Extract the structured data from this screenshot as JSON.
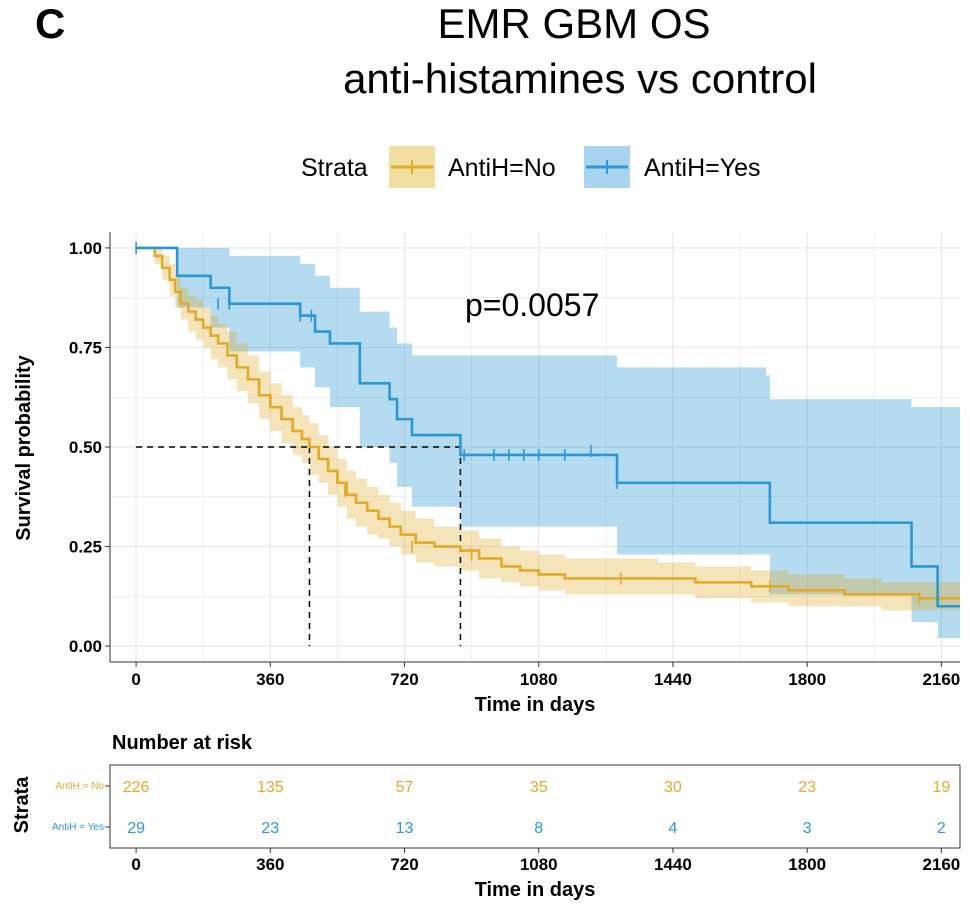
{
  "panel_letter": "C",
  "title_line1": "EMR GBM OS",
  "title_line2": "anti-histamines vs control",
  "colors": {
    "no": "#E2AA2A",
    "yes": "#2C97D6",
    "no_band": "#F2DEA0",
    "yes_band": "#A9D3EE",
    "grid": "#EBEBEB"
  },
  "legend": {
    "title": "Strata"
  },
  "chart_data": {
    "type": "line",
    "title": "EMR GBM OS anti-histamines vs control",
    "xlabel": "Time in days",
    "ylabel": "Survival probability",
    "xlim": [
      -70,
      2210
    ],
    "ylim": [
      -0.04,
      1.04
    ],
    "x_ticks": [
      0,
      360,
      720,
      1080,
      1440,
      1800,
      2160
    ],
    "x_tick_labels": [
      "0",
      "360",
      "720",
      "1080",
      "1440",
      "1800",
      "2160"
    ],
    "y_ticks": [
      0,
      0.25,
      0.5,
      0.75,
      1.0
    ],
    "y_tick_labels": [
      "0.00",
      "0.25",
      "0.50",
      "0.75",
      "1.00"
    ],
    "grid": true,
    "legend_position": "top",
    "annotation": "p=0.0057",
    "median_survival": {
      "AntiH=No": 465,
      "AntiH=Yes": 870
    },
    "series": [
      {
        "name": "AntiH=No",
        "x": [
          0,
          50,
          70,
          90,
          105,
          120,
          140,
          160,
          180,
          200,
          220,
          245,
          270,
          300,
          330,
          360,
          390,
          420,
          445,
          465,
          490,
          515,
          540,
          565,
          590,
          620,
          650,
          680,
          710,
          750,
          800,
          870,
          920,
          980,
          1030,
          1080,
          1150,
          1250,
          1400,
          1500,
          1650,
          1750,
          1900,
          2000,
          2100,
          2210
        ],
        "y": [
          1.0,
          0.98,
          0.95,
          0.92,
          0.89,
          0.86,
          0.84,
          0.82,
          0.8,
          0.78,
          0.76,
          0.73,
          0.7,
          0.67,
          0.63,
          0.6,
          0.57,
          0.54,
          0.52,
          0.5,
          0.47,
          0.44,
          0.41,
          0.38,
          0.36,
          0.34,
          0.32,
          0.3,
          0.28,
          0.26,
          0.25,
          0.24,
          0.22,
          0.2,
          0.19,
          0.18,
          0.17,
          0.17,
          0.17,
          0.16,
          0.15,
          0.14,
          0.13,
          0.13,
          0.12,
          0.12
        ],
        "lower": [
          1.0,
          0.96,
          0.92,
          0.88,
          0.85,
          0.82,
          0.79,
          0.77,
          0.75,
          0.72,
          0.7,
          0.67,
          0.64,
          0.61,
          0.57,
          0.54,
          0.51,
          0.48,
          0.46,
          0.43,
          0.41,
          0.38,
          0.35,
          0.32,
          0.3,
          0.28,
          0.27,
          0.25,
          0.23,
          0.21,
          0.2,
          0.19,
          0.17,
          0.16,
          0.15,
          0.14,
          0.13,
          0.13,
          0.13,
          0.12,
          0.11,
          0.1,
          0.1,
          0.09,
          0.09,
          0.09
        ],
        "upper": [
          1.0,
          1.0,
          0.98,
          0.96,
          0.93,
          0.9,
          0.88,
          0.87,
          0.85,
          0.83,
          0.81,
          0.79,
          0.76,
          0.73,
          0.69,
          0.66,
          0.63,
          0.6,
          0.58,
          0.56,
          0.53,
          0.5,
          0.47,
          0.44,
          0.42,
          0.4,
          0.38,
          0.36,
          0.34,
          0.32,
          0.3,
          0.29,
          0.27,
          0.25,
          0.24,
          0.23,
          0.22,
          0.22,
          0.21,
          0.2,
          0.19,
          0.18,
          0.17,
          0.16,
          0.16,
          0.16
        ],
        "censor_x": [
          560,
          740,
          900,
          1300,
          1700,
          2100
        ],
        "censor_y": [
          0.39,
          0.25,
          0.23,
          0.17,
          0.15,
          0.12
        ]
      },
      {
        "name": "AntiH=Yes",
        "x": [
          0,
          100,
          110,
          150,
          200,
          250,
          330,
          370,
          440,
          480,
          520,
          600,
          640,
          680,
          700,
          740,
          830,
          870,
          1270,
          1290,
          1690,
          1700,
          2060,
          2080,
          2140,
          2150,
          2210
        ],
        "y": [
          1.0,
          1.0,
          0.93,
          0.93,
          0.9,
          0.86,
          0.86,
          0.86,
          0.83,
          0.79,
          0.76,
          0.66,
          0.66,
          0.62,
          0.57,
          0.53,
          0.53,
          0.48,
          0.48,
          0.41,
          0.41,
          0.31,
          0.31,
          0.2,
          0.2,
          0.1,
          0.1
        ],
        "lower": [
          1.0,
          1.0,
          0.85,
          0.85,
          0.8,
          0.74,
          0.74,
          0.74,
          0.7,
          0.65,
          0.6,
          0.5,
          0.5,
          0.46,
          0.4,
          0.35,
          0.35,
          0.3,
          0.3,
          0.23,
          0.23,
          0.13,
          0.13,
          0.06,
          0.06,
          0.02,
          0.02
        ],
        "upper": [
          1.0,
          1.0,
          1.0,
          1.0,
          1.0,
          0.98,
          0.98,
          0.98,
          0.96,
          0.93,
          0.9,
          0.84,
          0.84,
          0.8,
          0.76,
          0.73,
          0.73,
          0.73,
          0.73,
          0.7,
          0.68,
          0.62,
          0.62,
          0.6,
          0.6,
          0.6,
          0.6
        ],
        "censor_x": [
          0,
          220,
          250,
          440,
          470,
          880,
          960,
          1000,
          1040,
          1080,
          1150,
          1220,
          1290
        ],
        "censor_y": [
          1.0,
          0.86,
          0.86,
          0.83,
          0.83,
          0.48,
          0.48,
          0.48,
          0.48,
          0.48,
          0.48,
          0.49,
          0.41
        ]
      }
    ]
  },
  "risk_table": {
    "title": "Number at risk",
    "strata_label": "Strata",
    "xlabel": "Time in days",
    "x_tick_labels": [
      "0",
      "360",
      "720",
      "1080",
      "1440",
      "1800",
      "2160"
    ],
    "rows": [
      {
        "label": "AntiH = No",
        "values": [
          "226",
          "135",
          "57",
          "35",
          "30",
          "23",
          "19"
        ]
      },
      {
        "label": "AntiH = Yes",
        "values": [
          "29",
          "23",
          "13",
          "8",
          "4",
          "3",
          "2"
        ]
      }
    ]
  }
}
